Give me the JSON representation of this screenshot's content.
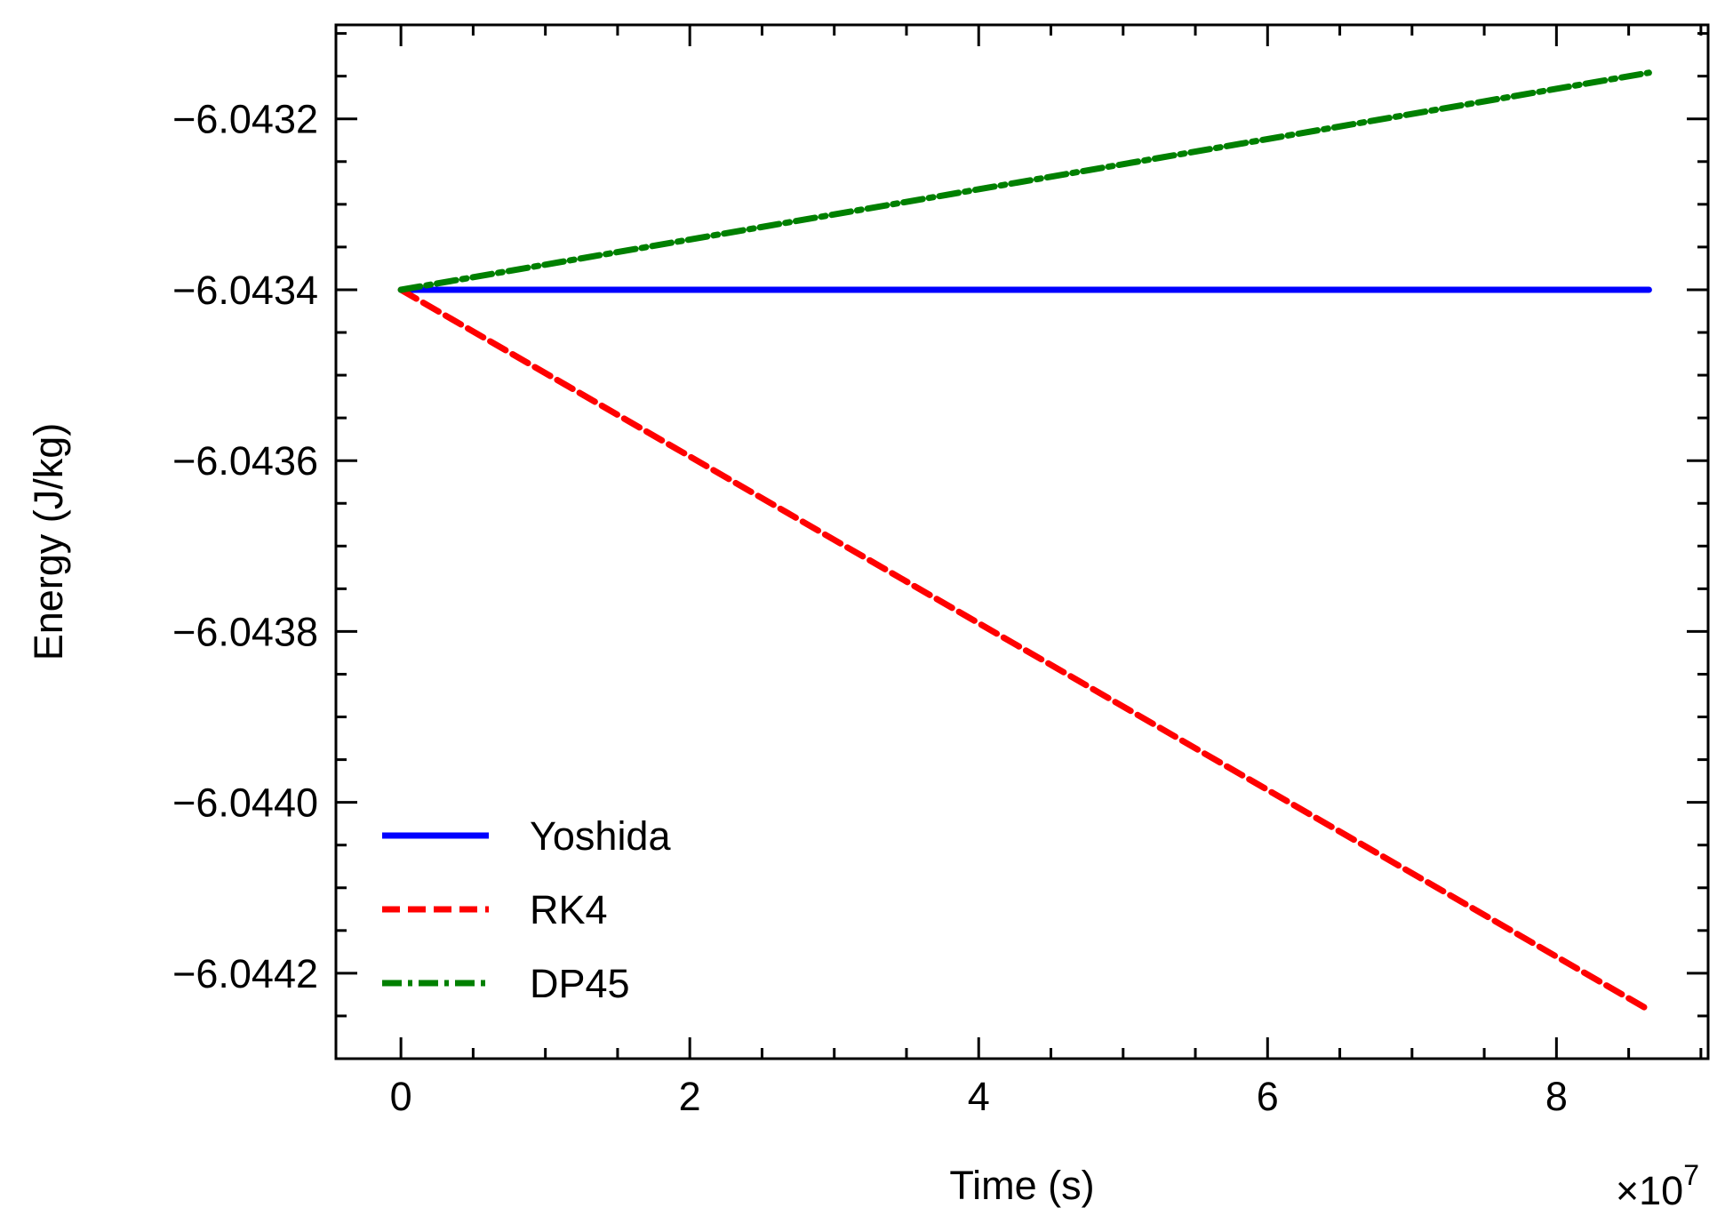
{
  "chart_data": {
    "type": "line",
    "xlabel": "Time (s)",
    "ylabel": "Energy (J/kg)",
    "x_scale_label": "×10",
    "x_scale_exponent": "7",
    "xlim": [
      -0.45,
      9.05
    ],
    "ylim": [
      -6.0443,
      -6.04309
    ],
    "x_ticks": [
      0,
      2,
      4,
      6,
      8
    ],
    "x_tick_labels": [
      "0",
      "2",
      "4",
      "6",
      "8"
    ],
    "y_ticks": [
      -6.0432,
      -6.0434,
      -6.0436,
      -6.0438,
      -6.044,
      -6.0442
    ],
    "y_tick_labels": [
      "−6.0432",
      "−6.0434",
      "−6.0436",
      "−6.0438",
      "−6.0440",
      "−6.0442"
    ],
    "grid": false,
    "legend_position": "lower-left",
    "series": [
      {
        "name": "Yoshida",
        "color": "#0000ff",
        "style": "solid",
        "x": [
          0,
          8.64
        ],
        "y": [
          -6.0434,
          -6.0434
        ]
      },
      {
        "name": "RK4",
        "color": "#ff0000",
        "style": "dashed",
        "x": [
          0,
          8.64
        ],
        "y": [
          -6.0434,
          -6.044243
        ]
      },
      {
        "name": "DP45",
        "color": "#008000",
        "style": "dashdot",
        "x": [
          0,
          8.64
        ],
        "y": [
          -6.0434,
          -6.043146
        ]
      }
    ]
  }
}
